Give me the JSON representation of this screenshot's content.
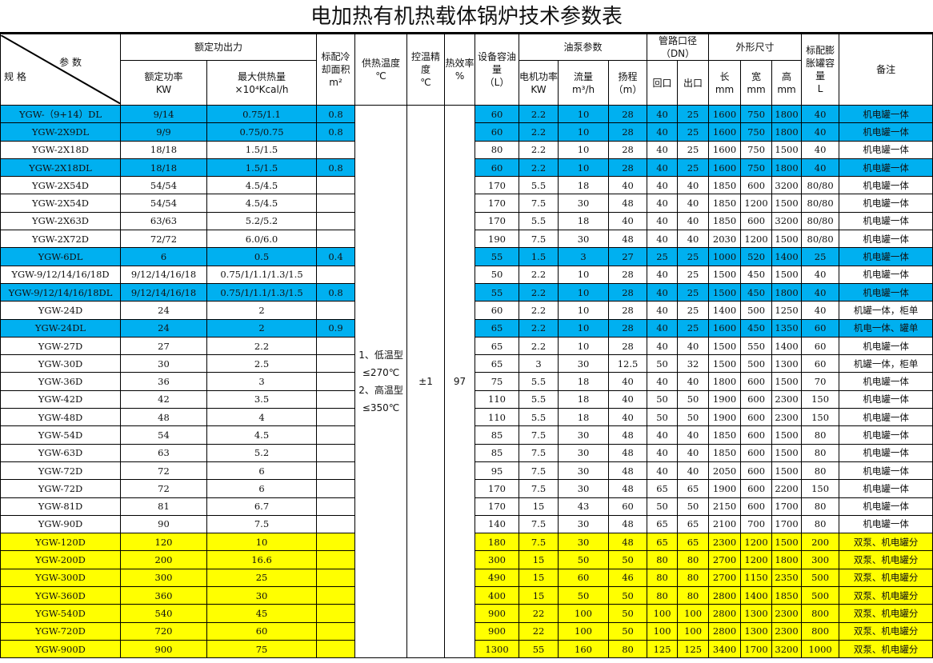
{
  "title": "电加热有机热载体锅炉技术参数表",
  "header": {
    "param": "参 数",
    "spec": "规 格",
    "rated_output": "额定功出力",
    "rated_power": "额定功率",
    "rated_power_unit": "KW",
    "max_heat": "最大供热量",
    "max_heat_unit": "×10⁴Kcal/h",
    "cooling_area": "标配冷却面积",
    "cooling_area_unit": "m²",
    "supply_temp": "供热温度",
    "supply_temp_unit": "℃",
    "temp_precision": "控温精度",
    "temp_precision_unit": "℃",
    "efficiency": "热效率",
    "efficiency_unit": "%",
    "oil_capacity": "设备容油量",
    "oil_capacity_unit": "（L）",
    "pump": "油泵参数",
    "motor_power": "电机功率",
    "motor_power_unit": "KW",
    "flow": "流量",
    "flow_unit": "m³/h",
    "head": "扬程",
    "head_unit": "（m）",
    "pipe": "管路口径（DN）",
    "return": "回口",
    "outlet": "出口",
    "dims": "外形尺寸",
    "length": "长",
    "width": "宽",
    "height": "高",
    "mm": "mm",
    "tank": "标配膨胀罐容量",
    "tank_unit": "L",
    "note": "备注"
  },
  "merged": {
    "supply_temp": "1、低温型≤270℃ 2、高温型≤350℃",
    "precision": "±1",
    "efficiency": "97"
  },
  "colors": {
    "blue": "#00b0f0",
    "yellow": "#ffff00"
  },
  "rows": [
    {
      "hl": "blue",
      "c": [
        "YGW-（9+14）DL",
        "9/14",
        "0.75/1.1",
        "0.8",
        "60",
        "2.2",
        "10",
        "28",
        "40",
        "25",
        "1600",
        "750",
        "1800",
        "40",
        "机电罐一体"
      ]
    },
    {
      "hl": "blue",
      "c": [
        "YGW-2X9DL",
        "9/9",
        "0.75/0.75",
        "0.8",
        "60",
        "2.2",
        "10",
        "28",
        "40",
        "25",
        "1600",
        "750",
        "1800",
        "40",
        "机电罐一体"
      ]
    },
    {
      "hl": "",
      "c": [
        "YGW-2X18D",
        "18/18",
        "1.5/1.5",
        "",
        "80",
        "2.2",
        "10",
        "28",
        "40",
        "25",
        "1600",
        "750",
        "1500",
        "40",
        "机电罐一体"
      ]
    },
    {
      "hl": "blue",
      "c": [
        "YGW-2X18DL",
        "18/18",
        "1.5/1.5",
        "0.8",
        "60",
        "2.2",
        "10",
        "28",
        "40",
        "25",
        "1600",
        "750",
        "1800",
        "40",
        "机电罐一体"
      ]
    },
    {
      "hl": "",
      "c": [
        "YGW-2X54D",
        "54/54",
        "4.5/4.5",
        "",
        "170",
        "5.5",
        "18",
        "40",
        "40",
        "40",
        "1850",
        "600",
        "3200",
        "80/80",
        "机电罐一体"
      ]
    },
    {
      "hl": "",
      "c": [
        "YGW-2X54D",
        "54/54",
        "4.5/4.5",
        "",
        "170",
        "7.5",
        "30",
        "48",
        "40",
        "40",
        "1850",
        "1200",
        "1500",
        "80/80",
        "机电罐一体"
      ]
    },
    {
      "hl": "",
      "c": [
        "YGW-2X63D",
        "63/63",
        "5.2/5.2",
        "",
        "170",
        "5.5",
        "18",
        "40",
        "40",
        "40",
        "1850",
        "600",
        "3200",
        "80/80",
        "机电罐一体"
      ]
    },
    {
      "hl": "",
      "c": [
        "YGW-2X72D",
        "72/72",
        "6.0/6.0",
        "",
        "190",
        "7.5",
        "30",
        "48",
        "40",
        "40",
        "2030",
        "1200",
        "1500",
        "80/80",
        "机电罐一体"
      ]
    },
    {
      "hl": "blue",
      "c": [
        "YGW-6DL",
        "6",
        "0.5",
        "0.4",
        "55",
        "1.5",
        "3",
        "27",
        "25",
        "25",
        "1000",
        "520",
        "1400",
        "25",
        "机电罐一体"
      ]
    },
    {
      "hl": "",
      "c": [
        "YGW-9/12/14/16/18D",
        "9/12/14/16/18",
        "0.75/1/1.1/1.3/1.5",
        "",
        "50",
        "2.2",
        "10",
        "28",
        "40",
        "25",
        "1500",
        "450",
        "1500",
        "40",
        "机电罐一体"
      ]
    },
    {
      "hl": "blue",
      "c": [
        "YGW-9/12/14/16/18DL",
        "9/12/14/16/18",
        "0.75/1/1.1/1.3/1.5",
        "0.8",
        "55",
        "2.2",
        "10",
        "28",
        "40",
        "25",
        "1500",
        "450",
        "1800",
        "40",
        "机电罐一体"
      ]
    },
    {
      "hl": "",
      "c": [
        "YGW-24D",
        "24",
        "2",
        "",
        "60",
        "2.2",
        "10",
        "28",
        "40",
        "25",
        "1400",
        "500",
        "1250",
        "40",
        "机罐一体，柜单"
      ]
    },
    {
      "hl": "blue",
      "c": [
        "YGW-24DL",
        "24",
        "2",
        "0.9",
        "65",
        "2.2",
        "10",
        "28",
        "40",
        "25",
        "1600",
        "450",
        "1350",
        "60",
        "机电一体、罐单"
      ]
    },
    {
      "hl": "",
      "c": [
        "YGW-27D",
        "27",
        "2.2",
        "",
        "65",
        "2.2",
        "10",
        "28",
        "40",
        "40",
        "1500",
        "550",
        "1400",
        "60",
        "机电罐一体"
      ]
    },
    {
      "hl": "",
      "c": [
        "YGW-30D",
        "30",
        "2.5",
        "",
        "65",
        "3",
        "30",
        "12.5",
        "50",
        "32",
        "1500",
        "500",
        "1300",
        "60",
        "机罐一体，柜单"
      ]
    },
    {
      "hl": "",
      "c": [
        "YGW-36D",
        "36",
        "3",
        "",
        "75",
        "5.5",
        "18",
        "40",
        "40",
        "40",
        "1800",
        "600",
        "1500",
        "70",
        "机电罐一体"
      ]
    },
    {
      "hl": "",
      "c": [
        "YGW-42D",
        "42",
        "3.5",
        "",
        "110",
        "5.5",
        "18",
        "40",
        "50",
        "50",
        "1900",
        "600",
        "2300",
        "150",
        "机电罐一体"
      ]
    },
    {
      "hl": "",
      "c": [
        "YGW-48D",
        "48",
        "4",
        "",
        "110",
        "5.5",
        "18",
        "40",
        "50",
        "50",
        "1900",
        "600",
        "2300",
        "150",
        "机电罐一体"
      ]
    },
    {
      "hl": "",
      "c": [
        "YGW-54D",
        "54",
        "4.5",
        "",
        "85",
        "7.5",
        "30",
        "48",
        "40",
        "40",
        "1850",
        "600",
        "1500",
        "80",
        "机电罐一体"
      ]
    },
    {
      "hl": "",
      "c": [
        "YGW-63D",
        "63",
        "5.2",
        "",
        "85",
        "7.5",
        "30",
        "48",
        "40",
        "40",
        "1850",
        "600",
        "1500",
        "80",
        "机电罐一体"
      ]
    },
    {
      "hl": "",
      "c": [
        "YGW-72D",
        "72",
        "6",
        "",
        "95",
        "7.5",
        "30",
        "48",
        "40",
        "40",
        "2050",
        "600",
        "1500",
        "80",
        "机电罐一体"
      ]
    },
    {
      "hl": "",
      "c": [
        "YGW-72D",
        "72",
        "6",
        "",
        "170",
        "7.5",
        "30",
        "48",
        "65",
        "65",
        "1900",
        "600",
        "2200",
        "150",
        "机电罐一体"
      ]
    },
    {
      "hl": "",
      "c": [
        "YGW-81D",
        "81",
        "6.7",
        "",
        "170",
        "15",
        "43",
        "60",
        "50",
        "50",
        "2150",
        "600",
        "1700",
        "80",
        "机电罐一体"
      ]
    },
    {
      "hl": "",
      "c": [
        "YGW-90D",
        "90",
        "7.5",
        "",
        "140",
        "7.5",
        "30",
        "48",
        "65",
        "65",
        "2100",
        "700",
        "1700",
        "80",
        "机电罐一体"
      ]
    },
    {
      "hl": "yellow",
      "c": [
        "YGW-120D",
        "120",
        "10",
        "",
        "180",
        "7.5",
        "30",
        "48",
        "65",
        "65",
        "2300",
        "1200",
        "1500",
        "200",
        "双泵、机电罐分"
      ]
    },
    {
      "hl": "yellow",
      "c": [
        "YGW-200D",
        "200",
        "16.6",
        "",
        "300",
        "15",
        "50",
        "50",
        "80",
        "80",
        "2700",
        "1200",
        "1800",
        "300",
        "双泵、机电罐分"
      ]
    },
    {
      "hl": "yellow",
      "c": [
        "YGW-300D",
        "300",
        "25",
        "",
        "490",
        "15",
        "60",
        "46",
        "80",
        "80",
        "2700",
        "1150",
        "2350",
        "500",
        "双泵、机电罐分"
      ]
    },
    {
      "hl": "yellow",
      "c": [
        "YGW-360D",
        "360",
        "30",
        "",
        "400",
        "15",
        "50",
        "50",
        "80",
        "80",
        "2800",
        "1400",
        "1850",
        "500",
        "双泵、机电罐分"
      ]
    },
    {
      "hl": "yellow",
      "c": [
        "YGW-540D",
        "540",
        "45",
        "",
        "900",
        "22",
        "100",
        "50",
        "100",
        "100",
        "2800",
        "1300",
        "2300",
        "800",
        "双泵、机电罐分"
      ]
    },
    {
      "hl": "yellow",
      "c": [
        "YGW-720D",
        "720",
        "60",
        "",
        "900",
        "22",
        "100",
        "50",
        "100",
        "100",
        "2800",
        "1300",
        "2300",
        "800",
        "双泵、机电罐分"
      ]
    },
    {
      "hl": "yellow",
      "c": [
        "YGW-900D",
        "900",
        "75",
        "",
        "1300",
        "55",
        "160",
        "80",
        "125",
        "125",
        "3400",
        "1700",
        "3200",
        "1000",
        "双泵、机电罐分"
      ]
    }
  ]
}
